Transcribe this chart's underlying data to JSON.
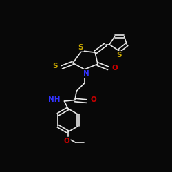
{
  "bg_color": "#080808",
  "bond_color": "#e8e8e8",
  "bond_width": 1.2,
  "atom_colors": {
    "S": "#ccaa00",
    "N": "#3333ff",
    "O": "#cc0000",
    "C": "#e8e8e8"
  },
  "font_size": 7.5,
  "fig_size": [
    2.5,
    2.5
  ],
  "dpi": 100
}
